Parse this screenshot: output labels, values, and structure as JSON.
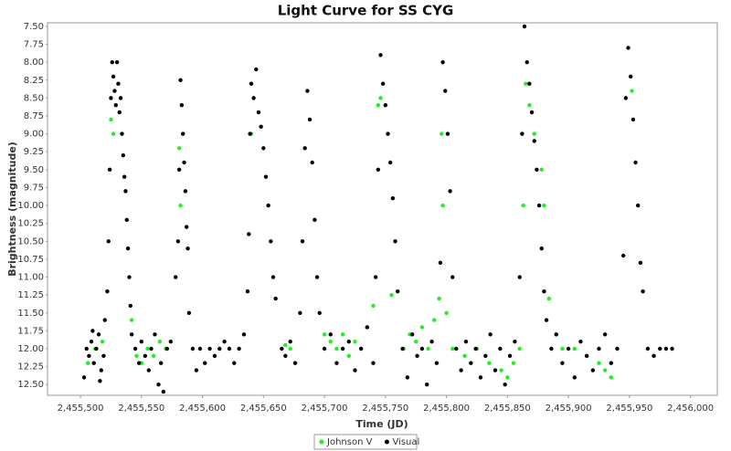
{
  "chart_data": {
    "type": "scatter",
    "title": "Light Curve for SS CYG",
    "x_label": "Time (JD)",
    "y_label": "Brightness (magnitude)",
    "xlim": [
      2455473,
      2456022
    ],
    "ylim": [
      7.45,
      12.65
    ],
    "y_inverted": true,
    "legend_position": "bottom",
    "xticks": [
      {
        "value": 2455500,
        "label": "2,455,500"
      },
      {
        "value": 2455550,
        "label": "2,455,550"
      },
      {
        "value": 2455600,
        "label": "2,455,600"
      },
      {
        "value": 2455650,
        "label": "2,455,650"
      },
      {
        "value": 2455700,
        "label": "2,455,700"
      },
      {
        "value": 2455750,
        "label": "2,455,750"
      },
      {
        "value": 2455800,
        "label": "2,455,800"
      },
      {
        "value": 2455850,
        "label": "2,455,850"
      },
      {
        "value": 2455900,
        "label": "2,455,900"
      },
      {
        "value": 2455950,
        "label": "2,455,950"
      },
      {
        "value": 2456000,
        "label": "2,456,000"
      }
    ],
    "yticks": [
      {
        "value": 7.5,
        "label": "7.50"
      },
      {
        "value": 7.75,
        "label": "7.75"
      },
      {
        "value": 8,
        "label": "8.00"
      },
      {
        "value": 8.25,
        "label": "8.25"
      },
      {
        "value": 8.5,
        "label": "8.50"
      },
      {
        "value": 8.75,
        "label": "8.75"
      },
      {
        "value": 9,
        "label": "9.00"
      },
      {
        "value": 9.25,
        "label": "9.25"
      },
      {
        "value": 9.5,
        "label": "9.50"
      },
      {
        "value": 9.75,
        "label": "9.75"
      },
      {
        "value": 10,
        "label": "10.00"
      },
      {
        "value": 10.25,
        "label": "10.25"
      },
      {
        "value": 10.5,
        "label": "10.50"
      },
      {
        "value": 10.75,
        "label": "10.75"
      },
      {
        "value": 11,
        "label": "11.00"
      },
      {
        "value": 11.25,
        "label": "11.25"
      },
      {
        "value": 11.5,
        "label": "11.50"
      },
      {
        "value": 11.75,
        "label": "11.75"
      },
      {
        "value": 12,
        "label": "12.00"
      },
      {
        "value": 12.25,
        "label": "12.25"
      },
      {
        "value": 12.5,
        "label": "12.50"
      }
    ],
    "series": [
      {
        "name": "Johnson V",
        "color": "#22ee22",
        "x": [
          2455506,
          2455512,
          2455518,
          2455525,
          2455527,
          2455542,
          2455546,
          2455550,
          2455555,
          2455560,
          2455565,
          2455570,
          2455581,
          2455582,
          2455640,
          2455668,
          2455672,
          2455700,
          2455705,
          2455710,
          2455715,
          2455720,
          2455725,
          2455730,
          2455735,
          2455740,
          2455744,
          2455746,
          2455755,
          2455765,
          2455770,
          2455775,
          2455780,
          2455785,
          2455790,
          2455794,
          2455796,
          2455797,
          2455800,
          2455805,
          2455815,
          2455825,
          2455835,
          2455845,
          2455850,
          2455855,
          2455860,
          2455863,
          2455865,
          2455868,
          2455872,
          2455878,
          2455880,
          2455884,
          2455890,
          2455895,
          2455905,
          2455915,
          2455925,
          2455930,
          2455935,
          2455952
        ],
        "values": [
          12.2,
          12.0,
          11.9,
          8.8,
          9.0,
          11.6,
          12.1,
          12.2,
          12.0,
          12.1,
          11.9,
          12.0,
          9.2,
          10.0,
          9.0,
          11.95,
          12.0,
          11.8,
          11.9,
          12.0,
          11.8,
          12.1,
          11.9,
          12.0,
          11.7,
          11.4,
          8.6,
          8.5,
          11.25,
          12.0,
          11.8,
          11.9,
          11.7,
          12.0,
          11.6,
          11.3,
          9.0,
          10.0,
          11.5,
          12.0,
          12.1,
          12.0,
          12.2,
          12.3,
          12.4,
          12.2,
          12.0,
          10.0,
          8.3,
          8.6,
          9.0,
          9.5,
          10.0,
          11.3,
          11.8,
          12.0,
          12.0,
          12.1,
          12.2,
          12.3,
          12.4,
          8.4
        ]
      },
      {
        "name": "Visual",
        "color": "#000000",
        "x": [
          2455505,
          2455507,
          2455509,
          2455511,
          2455513,
          2455515,
          2455517,
          2455519,
          2455503,
          2455510,
          2455516,
          2455520,
          2455522,
          2455523,
          2455524,
          2455525,
          2455526,
          2455527,
          2455528,
          2455529,
          2455530,
          2455531,
          2455532,
          2455533,
          2455534,
          2455535,
          2455536,
          2455537,
          2455538,
          2455539,
          2455540,
          2455541,
          2455542,
          2455545,
          2455548,
          2455550,
          2455553,
          2455556,
          2455558,
          2455561,
          2455564,
          2455566,
          2455568,
          2455571,
          2455574,
          2455578,
          2455580,
          2455581,
          2455582,
          2455583,
          2455584,
          2455585,
          2455586,
          2455587,
          2455588,
          2455589,
          2455592,
          2455595,
          2455598,
          2455602,
          2455606,
          2455610,
          2455614,
          2455618,
          2455622,
          2455626,
          2455630,
          2455634,
          2455637,
          2455638,
          2455639,
          2455640,
          2455642,
          2455644,
          2455646,
          2455648,
          2455650,
          2455652,
          2455654,
          2455656,
          2455658,
          2455660,
          2455665,
          2455668,
          2455672,
          2455676,
          2455680,
          2455682,
          2455684,
          2455686,
          2455688,
          2455690,
          2455692,
          2455694,
          2455696,
          2455700,
          2455705,
          2455710,
          2455715,
          2455720,
          2455725,
          2455730,
          2455735,
          2455740,
          2455742,
          2455744,
          2455746,
          2455748,
          2455750,
          2455752,
          2455754,
          2455756,
          2455758,
          2455760,
          2455764,
          2455768,
          2455772,
          2455776,
          2455780,
          2455784,
          2455788,
          2455792,
          2455795,
          2455797,
          2455799,
          2455801,
          2455803,
          2455805,
          2455808,
          2455812,
          2455816,
          2455820,
          2455824,
          2455828,
          2455832,
          2455836,
          2455840,
          2455844,
          2455848,
          2455852,
          2455856,
          2455860,
          2455862,
          2455864,
          2455866,
          2455868,
          2455870,
          2455872,
          2455874,
          2455876,
          2455878,
          2455880,
          2455882,
          2455886,
          2455890,
          2455895,
          2455900,
          2455905,
          2455910,
          2455915,
          2455920,
          2455925,
          2455930,
          2455935,
          2455940,
          2455945,
          2455947,
          2455949,
          2455951,
          2455953,
          2455955,
          2455957,
          2455959,
          2455961,
          2455965,
          2455970,
          2455975,
          2455980,
          2455985
        ],
        "values": [
          12.0,
          12.1,
          11.9,
          12.2,
          12.0,
          11.8,
          12.3,
          12.1,
          12.4,
          11.75,
          12.45,
          11.6,
          11.2,
          10.5,
          9.5,
          8.5,
          8.0,
          8.2,
          8.4,
          8.6,
          8.0,
          8.3,
          8.7,
          8.5,
          9.0,
          9.3,
          9.6,
          9.8,
          10.2,
          10.6,
          11.0,
          11.4,
          11.8,
          12.0,
          12.2,
          11.9,
          12.1,
          12.3,
          12.0,
          11.8,
          12.5,
          12.2,
          12.6,
          12.0,
          11.9,
          11.0,
          10.5,
          9.5,
          8.25,
          8.6,
          9.0,
          9.4,
          9.8,
          10.3,
          10.6,
          11.5,
          12.0,
          12.3,
          12.0,
          12.2,
          12.0,
          12.1,
          12.0,
          11.9,
          12.0,
          12.2,
          12.0,
          11.8,
          11.2,
          10.4,
          9.0,
          8.3,
          8.5,
          8.1,
          8.7,
          8.9,
          9.2,
          9.6,
          10.0,
          10.5,
          11.0,
          11.3,
          12.0,
          12.1,
          11.9,
          12.2,
          11.5,
          10.5,
          9.2,
          8.4,
          8.8,
          9.4,
          10.2,
          11.0,
          11.5,
          12.0,
          11.8,
          12.2,
          12.0,
          11.9,
          12.3,
          12.0,
          11.7,
          12.2,
          11.0,
          9.5,
          7.9,
          8.3,
          8.6,
          9.0,
          9.4,
          9.9,
          10.5,
          11.2,
          12.0,
          12.4,
          11.8,
          12.1,
          12.0,
          12.5,
          11.9,
          12.2,
          10.8,
          8.0,
          8.4,
          9.0,
          9.8,
          11.0,
          12.0,
          12.3,
          11.9,
          12.2,
          12.0,
          12.4,
          12.1,
          11.8,
          12.3,
          12.0,
          12.5,
          12.1,
          11.9,
          11.0,
          9.0,
          7.5,
          8.0,
          8.3,
          8.7,
          9.1,
          9.5,
          10.0,
          10.6,
          11.2,
          11.6,
          12.0,
          11.8,
          12.2,
          12.0,
          12.4,
          11.9,
          12.1,
          12.3,
          12.0,
          11.8,
          12.2,
          12.0,
          10.7,
          8.5,
          7.8,
          8.2,
          8.8,
          9.4,
          10.0,
          10.8,
          11.2,
          12.0,
          12.1,
          12.0,
          12.0,
          12.0
        ]
      }
    ]
  }
}
